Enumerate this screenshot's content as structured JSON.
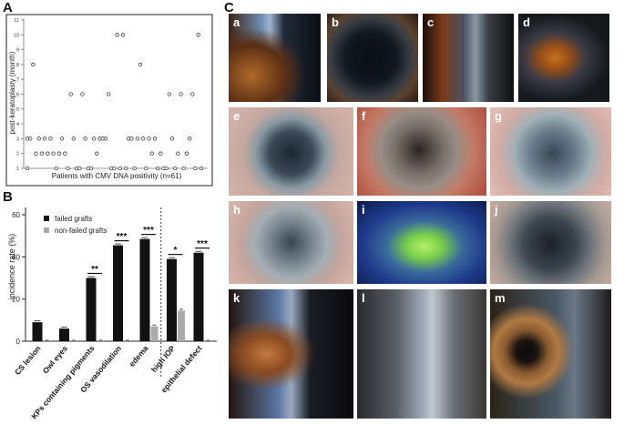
{
  "panels": {
    "a_letter": "A",
    "b_letter": "B",
    "c_letter": "C"
  },
  "chart_data": [
    {
      "id": "A",
      "type": "scatter",
      "title": "",
      "xlabel": "Patients with CMV DNA positivity (n=61)",
      "ylabel": "post-keratoplasty (month)",
      "ylim": [
        1,
        11
      ],
      "yticks": [
        "1",
        "2",
        "3",
        "4",
        "5",
        "6",
        "7",
        "8",
        "9",
        "10",
        "11"
      ],
      "grid": false,
      "series": [
        {
          "marker": "open-circle",
          "points": [
            [
              1,
              1
            ],
            [
              1,
              3
            ],
            [
              2,
              3
            ],
            [
              3,
              8
            ],
            [
              4,
              2
            ],
            [
              5,
              3
            ],
            [
              6,
              2
            ],
            [
              7,
              3
            ],
            [
              8,
              2
            ],
            [
              9,
              3
            ],
            [
              10,
              2
            ],
            [
              11,
              1
            ],
            [
              12,
              2
            ],
            [
              13,
              3
            ],
            [
              14,
              2
            ],
            [
              15,
              1
            ],
            [
              16,
              6
            ],
            [
              17,
              3
            ],
            [
              18,
              1
            ],
            [
              19,
              1
            ],
            [
              20,
              6
            ],
            [
              21,
              3
            ],
            [
              22,
              1
            ],
            [
              23,
              1
            ],
            [
              24,
              3
            ],
            [
              25,
              2
            ],
            [
              26,
              3
            ],
            [
              27,
              3
            ],
            [
              28,
              3
            ],
            [
              29,
              6
            ],
            [
              30,
              1
            ],
            [
              31,
              1
            ],
            [
              32,
              10
            ],
            [
              33,
              1
            ],
            [
              34,
              10
            ],
            [
              35,
              1
            ],
            [
              36,
              3
            ],
            [
              37,
              3
            ],
            [
              38,
              1
            ],
            [
              39,
              3
            ],
            [
              40,
              8
            ],
            [
              41,
              3
            ],
            [
              42,
              1
            ],
            [
              43,
              3
            ],
            [
              44,
              2
            ],
            [
              45,
              3
            ],
            [
              46,
              1
            ],
            [
              47,
              2
            ],
            [
              48,
              1
            ],
            [
              49,
              1
            ],
            [
              50,
              6
            ],
            [
              51,
              3
            ],
            [
              52,
              1
            ],
            [
              53,
              2
            ],
            [
              54,
              6
            ],
            [
              55,
              1
            ],
            [
              56,
              2
            ],
            [
              57,
              3
            ],
            [
              58,
              6
            ],
            [
              59,
              1
            ],
            [
              60,
              10
            ],
            [
              61,
              1
            ]
          ]
        }
      ]
    },
    {
      "id": "B",
      "type": "bar",
      "title": "",
      "xlabel": "",
      "ylabel": "incidence rate (%)",
      "ylim": [
        0,
        60
      ],
      "yticks": [
        "0",
        "20",
        "40",
        "60"
      ],
      "legend_placement": "top-left",
      "categories": [
        "CS lesion",
        "Owl eyes",
        "KPs containing pigments",
        "OS vasodilation",
        "edema",
        "high IOP",
        "epithelial defect"
      ],
      "series": [
        {
          "name": "failed grafts",
          "color": "#111111",
          "values": [
            9,
            6,
            30,
            45.5,
            48.5,
            39,
            42
          ]
        },
        {
          "name": "non-failed grafts",
          "color": "#aaaaaa",
          "values": [
            0,
            0,
            0,
            0,
            7,
            14.5,
            0
          ]
        }
      ],
      "significance": [
        {
          "category": "KPs containing pigments",
          "label": "**"
        },
        {
          "category": "OS vasodilation",
          "label": "***"
        },
        {
          "category": "edema",
          "label": "***"
        },
        {
          "category": "high IOP",
          "label": "*"
        },
        {
          "category": "epithelial defect",
          "label": "***"
        }
      ],
      "dashed_separator_after": "edema"
    }
  ],
  "photos": [
    {
      "label": "a",
      "icon": "slit-lamp-eye-photo"
    },
    {
      "label": "b",
      "icon": "slit-lamp-eye-photo"
    },
    {
      "label": "c",
      "icon": "slit-lamp-eye-photo"
    },
    {
      "label": "d",
      "icon": "slit-lamp-eye-photo"
    },
    {
      "label": "e",
      "icon": "graft-eye-photo"
    },
    {
      "label": "f",
      "icon": "graft-eye-photo"
    },
    {
      "label": "g",
      "icon": "graft-eye-photo"
    },
    {
      "label": "h",
      "icon": "graft-eye-photo"
    },
    {
      "label": "i",
      "icon": "fluorescein-eye-photo"
    },
    {
      "label": "j",
      "icon": "graft-eye-photo"
    },
    {
      "label": "k",
      "icon": "slit-lamp-eye-photo"
    },
    {
      "label": "l",
      "icon": "slit-lamp-eye-photo"
    },
    {
      "label": "m",
      "icon": "slit-lamp-eye-photo"
    }
  ]
}
